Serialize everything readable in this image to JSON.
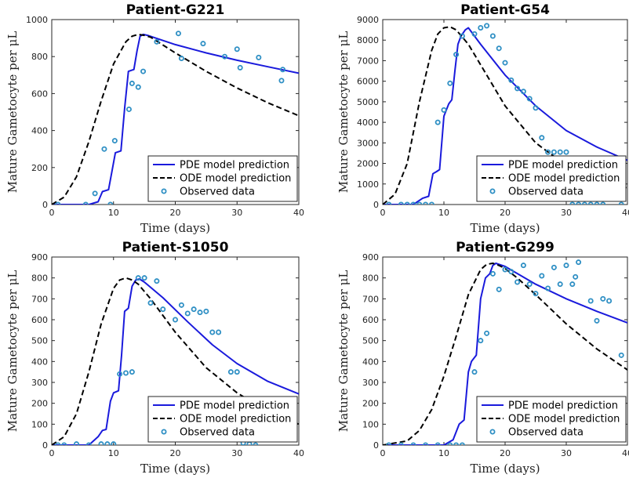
{
  "chart_data": [
    {
      "type": "line",
      "title": "Patient-G221",
      "xlabel": "Time (days)",
      "ylabel": "Mature Gametocyte per μL",
      "xlim": [
        0,
        40
      ],
      "ylim": [
        0,
        1000
      ],
      "xticks": [
        0,
        10,
        20,
        30,
        40
      ],
      "yticks": [
        0,
        200,
        400,
        600,
        800,
        1000
      ],
      "legend": {
        "placement": "bottom-right"
      },
      "series": [
        {
          "name": "PDE model prediction",
          "style": "solid",
          "color": "#1a1adc",
          "x": [
            0,
            6,
            7.5,
            8.2,
            9.2,
            9.8,
            10.3,
            11.2,
            11.8,
            12.4,
            13.3,
            13.8,
            14.3,
            14.8,
            15.5,
            20,
            25,
            30,
            35,
            40
          ],
          "y": [
            0,
            0,
            15,
            70,
            80,
            190,
            280,
            290,
            520,
            720,
            730,
            830,
            910,
            920,
            915,
            865,
            820,
            780,
            745,
            710
          ]
        },
        {
          "name": "ODE model prediction",
          "style": "dashed",
          "color": "#000000",
          "x": [
            0,
            2,
            4,
            6,
            8,
            10,
            12,
            13,
            14,
            15,
            16,
            20,
            25,
            30,
            35,
            40
          ],
          "y": [
            0,
            40,
            150,
            340,
            560,
            760,
            880,
            910,
            920,
            915,
            905,
            820,
            720,
            630,
            550,
            480
          ]
        },
        {
          "name": "Observed data",
          "style": "markers",
          "color": "#2e8fc4",
          "x": [
            1,
            5.5,
            7,
            8.5,
            9.5,
            10.2,
            12.5,
            13,
            14,
            14.8,
            17,
            20.5,
            21,
            24.5,
            28,
            30,
            30.5,
            33.5,
            37.2,
            37.4
          ],
          "y": [
            0,
            0,
            60,
            300,
            0,
            345,
            515,
            655,
            635,
            720,
            880,
            925,
            790,
            870,
            800,
            840,
            740,
            795,
            670,
            730
          ]
        }
      ]
    },
    {
      "type": "line",
      "title": "Patient-G54",
      "xlabel": "Time (days)",
      "ylabel": "Mature Gametocyte per μL",
      "xlim": [
        0,
        40
      ],
      "ylim": [
        0,
        9000
      ],
      "xticks": [
        0,
        10,
        20,
        30,
        40
      ],
      "yticks": [
        0,
        1000,
        2000,
        3000,
        4000,
        5000,
        6000,
        7000,
        8000,
        9000
      ],
      "legend": {
        "placement": "bottom-right"
      },
      "series": [
        {
          "name": "PDE model prediction",
          "style": "solid",
          "color": "#1a1adc",
          "x": [
            0,
            5,
            6.5,
            7.5,
            8.2,
            8.8,
            9.3,
            10,
            10.8,
            11.3,
            11.8,
            12.3,
            12.8,
            13.5,
            14,
            16,
            20,
            25,
            30,
            35,
            40
          ],
          "y": [
            0,
            0,
            300,
            400,
            1500,
            1600,
            1700,
            4300,
            4900,
            5100,
            6500,
            7800,
            8200,
            8500,
            8600,
            7800,
            6300,
            4800,
            3600,
            2800,
            2150
          ]
        },
        {
          "name": "ODE model prediction",
          "style": "dashed",
          "color": "#000000",
          "x": [
            0,
            2,
            4,
            6,
            8,
            9,
            10,
            11,
            12,
            14,
            16,
            20,
            25,
            30,
            35,
            40
          ],
          "y": [
            0,
            500,
            2000,
            5000,
            7500,
            8300,
            8600,
            8650,
            8500,
            7800,
            6800,
            4800,
            3000,
            1900,
            1200,
            800
          ]
        },
        {
          "name": "Observed data",
          "style": "markers",
          "color": "#2e8fc4",
          "x": [
            1,
            3,
            4,
            5,
            6,
            7,
            8,
            9,
            10,
            11,
            12,
            13,
            15,
            16,
            17,
            18,
            19,
            20,
            21,
            22,
            23,
            24,
            25,
            26,
            27,
            28,
            29,
            30,
            31,
            32,
            33,
            34,
            35,
            36,
            39
          ],
          "y": [
            0,
            0,
            0,
            0,
            0,
            0,
            0,
            4000,
            4600,
            5900,
            7300,
            8200,
            8300,
            8600,
            8700,
            8200,
            7600,
            6900,
            6050,
            5650,
            5500,
            5150,
            4700,
            3250,
            2550,
            2550,
            2550,
            2550,
            0,
            0,
            0,
            0,
            0,
            0,
            0
          ]
        }
      ]
    },
    {
      "type": "line",
      "title": "Patient-S1050",
      "xlabel": "Time (days)",
      "ylabel": "Mature Gametocyte per μL",
      "xlim": [
        0,
        40
      ],
      "ylim": [
        0,
        900
      ],
      "xticks": [
        0,
        10,
        20,
        30,
        40
      ],
      "yticks": [
        0,
        100,
        200,
        300,
        400,
        500,
        600,
        700,
        800,
        900
      ],
      "legend": {
        "placement": "bottom-right"
      },
      "series": [
        {
          "name": "PDE model prediction",
          "style": "solid",
          "color": "#1a1adc",
          "x": [
            0,
            6,
            7.5,
            8.2,
            8.8,
            9.5,
            10,
            10.8,
            11.3,
            11.8,
            12.4,
            13,
            13.6,
            14.2,
            15,
            18,
            22,
            26,
            30,
            35,
            40
          ],
          "y": [
            0,
            0,
            40,
            70,
            75,
            210,
            250,
            260,
            430,
            640,
            655,
            760,
            790,
            795,
            780,
            705,
            590,
            480,
            390,
            305,
            245
          ]
        },
        {
          "name": "ODE model prediction",
          "style": "dashed",
          "color": "#000000",
          "x": [
            0,
            2,
            4,
            6,
            8,
            10,
            11,
            12,
            13,
            14,
            16,
            20,
            25,
            30,
            35,
            40
          ],
          "y": [
            0,
            40,
            150,
            350,
            580,
            750,
            790,
            800,
            790,
            770,
            700,
            540,
            370,
            250,
            160,
            100
          ]
        },
        {
          "name": "Observed data",
          "style": "markers",
          "color": "#2e8fc4",
          "x": [
            1,
            2,
            4,
            6,
            8,
            9,
            10,
            11,
            12,
            13,
            14,
            15,
            16,
            17,
            18,
            20,
            21,
            22,
            23,
            24,
            25,
            26,
            27,
            29,
            30,
            31,
            32,
            33
          ],
          "y": [
            0,
            0,
            5,
            0,
            5,
            5,
            5,
            340,
            345,
            350,
            800,
            800,
            680,
            785,
            650,
            600,
            670,
            630,
            650,
            635,
            640,
            540,
            540,
            350,
            350,
            10,
            5,
            0
          ]
        }
      ]
    },
    {
      "type": "line",
      "title": "Patient-G299",
      "xlabel": "Time (days)",
      "ylabel": "Mature Gametocyte per μL",
      "xlim": [
        0,
        40
      ],
      "ylim": [
        0,
        900
      ],
      "xticks": [
        0,
        10,
        20,
        30,
        40
      ],
      "yticks": [
        0,
        100,
        200,
        300,
        400,
        500,
        600,
        700,
        800,
        900
      ],
      "legend": {
        "placement": "bottom-right"
      },
      "series": [
        {
          "name": "PDE model prediction",
          "style": "solid",
          "color": "#1a1adc",
          "x": [
            0,
            10,
            11.5,
            12.5,
            13.3,
            14,
            14.5,
            15.3,
            16,
            16.8,
            17.5,
            18,
            18.5,
            20,
            25,
            30,
            35,
            40
          ],
          "y": [
            0,
            0,
            25,
            100,
            120,
            350,
            400,
            430,
            700,
            800,
            820,
            860,
            870,
            855,
            770,
            700,
            640,
            585
          ]
        },
        {
          "name": "ODE model prediction",
          "style": "dashed",
          "color": "#000000",
          "x": [
            0,
            4,
            6,
            8,
            10,
            12,
            14,
            16,
            17,
            18,
            19,
            20,
            22,
            25,
            30,
            35,
            40
          ],
          "y": [
            0,
            20,
            70,
            170,
            330,
            520,
            720,
            840,
            865,
            870,
            860,
            845,
            800,
            720,
            580,
            460,
            360
          ]
        },
        {
          "name": "Observed data",
          "style": "markers",
          "color": "#2e8fc4",
          "x": [
            1,
            3,
            5,
            7,
            9,
            11,
            12,
            13,
            15,
            16,
            17,
            18,
            19,
            20,
            21,
            22,
            23,
            24,
            25,
            26,
            27,
            28,
            29,
            30,
            31,
            31.5,
            32,
            34,
            35,
            36,
            37,
            39
          ],
          "y": [
            0,
            0,
            0,
            0,
            0,
            0,
            0,
            0,
            350,
            500,
            535,
            820,
            745,
            840,
            830,
            780,
            860,
            770,
            725,
            810,
            750,
            850,
            770,
            860,
            770,
            805,
            875,
            690,
            595,
            700,
            690,
            430
          ]
        }
      ]
    }
  ]
}
